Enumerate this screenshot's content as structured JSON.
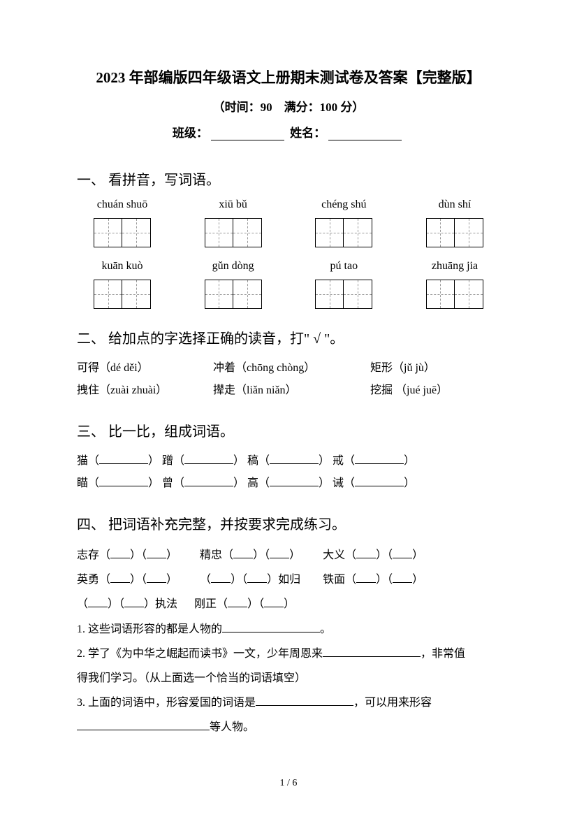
{
  "title": "2023 年部编版四年级语文上册期末测试卷及答案【完整版】",
  "subtitle": "（时间：90　满分：100 分）",
  "info": {
    "class_label": "班级：",
    "name_label": "姓名："
  },
  "section1": {
    "heading": "一、 看拼音，写词语。",
    "row1": [
      "chuán shuō",
      "xiū bǔ",
      "chéng shú",
      "dùn shí"
    ],
    "row2": [
      "kuān kuò",
      "gǔn dòng",
      "pú tao",
      "zhuāng jia"
    ]
  },
  "section2": {
    "heading": "二、 给加点的字选择正确的读音，打\" √ \"。",
    "line1": {
      "a": "可得（dé  děi）",
      "b": "冲着（chōng  chòng）",
      "c": "矩形（jǔ  jù）"
    },
    "line2": {
      "a": "拽住（zuài  zhuài）",
      "b": "撵走（liǎn  niǎn）",
      "c": "挖掘 （jué  juē）"
    }
  },
  "section3": {
    "heading": "三、 比一比，组成词语。",
    "line1": {
      "a": "猫（",
      "b": "）  蹭（",
      "c": "）  稿（",
      "d": "）  戒（",
      "e": "）"
    },
    "line2": {
      "a": "瞄（",
      "b": "）  曾（",
      "c": "）  高（",
      "d": "）  诫（",
      "e": "）"
    }
  },
  "section4": {
    "heading": "四、 把词语补充完整，并按要求完成练习。",
    "l1": {
      "a": "志存（",
      "b": "）（",
      "c": "）",
      "d": "精忠（",
      "e": "）（",
      "f": "）",
      "g": "大义（",
      "h": "）（",
      "i": "）"
    },
    "l2": {
      "a": "英勇（",
      "b": "）（",
      "c": "）",
      "d": "（",
      "e": "）（",
      "f": "）如归",
      "g": "铁面（",
      "h": "）（",
      "i": "）"
    },
    "l3": {
      "a": "（",
      "b": "）（",
      "c": "）执法",
      "d": "刚正（",
      "e": "）（",
      "f": "）"
    },
    "q1a": "1. 这些词语形容的都是人物的",
    "q1b": "。",
    "q2a": "2. 学了《为中华之崛起而读书》一文，少年周恩来",
    "q2b": "，非常值",
    "q2c": "得我们学习。（从上面选一个恰当的词语填空）",
    "q3a": "3. 上面的词语中，形容爱国的词语是",
    "q3b": "，可以用来形容",
    "q3c": "等人物。"
  },
  "pagenum": "1 / 6"
}
